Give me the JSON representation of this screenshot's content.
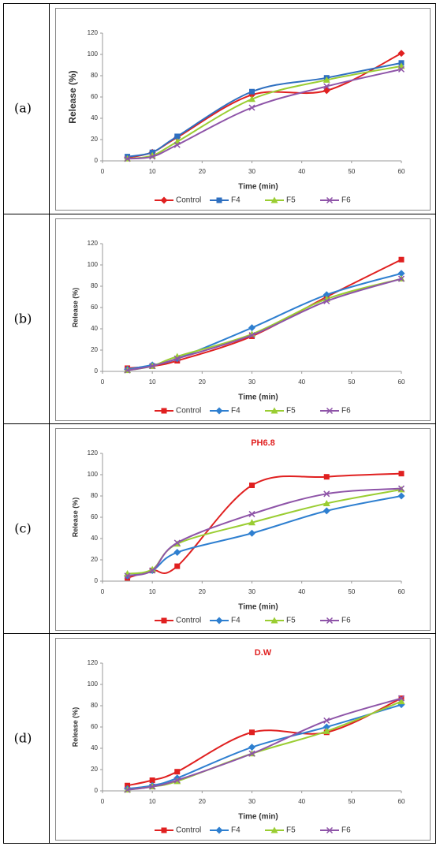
{
  "panel_labels": [
    "(a)",
    "(b)",
    "(c)",
    "(d)"
  ],
  "chart_data": [
    {
      "type": "line",
      "x_label": "Time (min)",
      "y_label": "Release (%)",
      "xlim": [
        0,
        60
      ],
      "xticks": [
        0,
        10,
        20,
        30,
        40,
        50,
        60
      ],
      "ylim": [
        0,
        120
      ],
      "yticks": [
        0,
        20,
        40,
        60,
        80,
        100,
        120
      ],
      "x": [
        5,
        10,
        15,
        30,
        45,
        60
      ],
      "series": [
        {
          "name": "Control",
          "color": "#e02020",
          "marker": "diamond",
          "values": [
            3,
            8,
            22,
            62,
            66,
            101
          ]
        },
        {
          "name": "F4",
          "color": "#2e6fc0",
          "marker": "square",
          "values": [
            4,
            8,
            23,
            65,
            78,
            92
          ]
        },
        {
          "name": "F5",
          "color": "#9acd32",
          "marker": "triangle",
          "values": [
            2,
            5,
            18,
            58,
            76,
            89
          ]
        },
        {
          "name": "F6",
          "color": "#8e54a8",
          "marker": "x",
          "values": [
            2,
            4,
            15,
            50,
            70,
            86
          ]
        }
      ]
    },
    {
      "type": "line",
      "x_label": "Time (min)",
      "y_label": "Release (%)",
      "xlim": [
        0,
        60
      ],
      "xticks": [
        0,
        10,
        20,
        30,
        40,
        50,
        60
      ],
      "ylim": [
        0,
        120
      ],
      "yticks": [
        0,
        20,
        40,
        60,
        80,
        100,
        120
      ],
      "x": [
        5,
        10,
        15,
        30,
        45,
        60
      ],
      "series": [
        {
          "name": "Control",
          "color": "#e02020",
          "marker": "square",
          "values": [
            3,
            5,
            10,
            33,
            70,
            105
          ]
        },
        {
          "name": "F4",
          "color": "#2e7fd0",
          "marker": "diamond",
          "values": [
            2,
            6,
            12,
            41,
            72,
            92
          ]
        },
        {
          "name": "F5",
          "color": "#9acd32",
          "marker": "triangle",
          "values": [
            1,
            5,
            14,
            35,
            68,
            87
          ]
        },
        {
          "name": "F6",
          "color": "#8e54a8",
          "marker": "x",
          "values": [
            1,
            5,
            12,
            34,
            66,
            87
          ]
        }
      ]
    },
    {
      "type": "line",
      "title": "PH6.8",
      "x_label": "Time (min)",
      "y_label": "Release (%)",
      "xlim": [
        0,
        60
      ],
      "xticks": [
        0,
        10,
        20,
        30,
        40,
        50,
        60
      ],
      "ylim": [
        0,
        120
      ],
      "yticks": [
        0,
        20,
        40,
        60,
        80,
        100,
        120
      ],
      "x": [
        5,
        10,
        15,
        30,
        45,
        60
      ],
      "series": [
        {
          "name": "Control",
          "color": "#e02020",
          "marker": "square",
          "values": [
            3,
            10,
            14,
            90,
            98,
            101
          ]
        },
        {
          "name": "F4",
          "color": "#2e7fd0",
          "marker": "diamond",
          "values": [
            5,
            10,
            27,
            45,
            66,
            80
          ]
        },
        {
          "name": "F5",
          "color": "#9acd32",
          "marker": "triangle",
          "values": [
            7,
            11,
            35,
            55,
            73,
            86
          ]
        },
        {
          "name": "F6",
          "color": "#8e54a8",
          "marker": "x",
          "values": [
            5,
            10,
            36,
            63,
            82,
            87
          ]
        }
      ]
    },
    {
      "type": "line",
      "title": "D.W",
      "x_label": "Time (min)",
      "y_label": "Release (%)",
      "xlim": [
        0,
        60
      ],
      "xticks": [
        0,
        10,
        20,
        30,
        40,
        50,
        60
      ],
      "ylim": [
        0,
        120
      ],
      "yticks": [
        0,
        20,
        40,
        60,
        80,
        100,
        120
      ],
      "x": [
        5,
        10,
        15,
        30,
        45,
        60
      ],
      "series": [
        {
          "name": "Control",
          "color": "#e02020",
          "marker": "square",
          "values": [
            5,
            10,
            18,
            55,
            55,
            87
          ]
        },
        {
          "name": "F4",
          "color": "#2e7fd0",
          "marker": "diamond",
          "values": [
            2,
            5,
            12,
            41,
            60,
            81
          ]
        },
        {
          "name": "F5",
          "color": "#9acd32",
          "marker": "triangle",
          "values": [
            1,
            4,
            9,
            35,
            56,
            84
          ]
        },
        {
          "name": "F6",
          "color": "#8e54a8",
          "marker": "x",
          "values": [
            1,
            4,
            10,
            35,
            66,
            87
          ]
        }
      ]
    }
  ]
}
